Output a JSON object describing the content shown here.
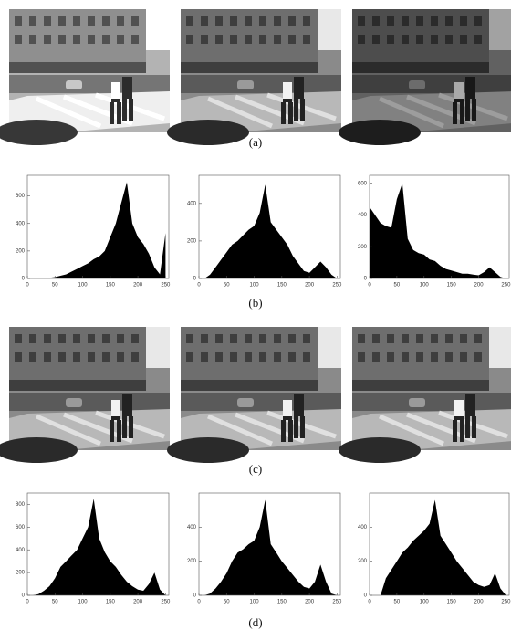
{
  "captions": [
    "(a)",
    "(b)",
    "(c)",
    "(d)"
  ],
  "chart_data": [
    {
      "type": "area",
      "color": "#000000",
      "x": [
        0,
        10,
        20,
        30,
        40,
        50,
        60,
        70,
        80,
        90,
        100,
        110,
        120,
        130,
        140,
        150,
        160,
        170,
        180,
        190,
        200,
        210,
        220,
        230,
        240,
        250
      ],
      "values": [
        0,
        0,
        0,
        0,
        5,
        10,
        20,
        30,
        50,
        70,
        90,
        110,
        140,
        160,
        200,
        300,
        400,
        550,
        700,
        400,
        300,
        250,
        180,
        80,
        30,
        330
      ],
      "xlim": [
        0,
        256
      ],
      "xticks": [
        0,
        50,
        100,
        150,
        200,
        250
      ],
      "ylim": [
        0,
        750
      ],
      "yticks": [
        0,
        200,
        400,
        600
      ]
    },
    {
      "type": "area",
      "color": "#000000",
      "x": [
        0,
        10,
        20,
        30,
        40,
        50,
        60,
        70,
        80,
        90,
        100,
        110,
        120,
        130,
        140,
        150,
        160,
        170,
        180,
        190,
        200,
        210,
        220,
        230,
        240,
        250
      ],
      "values": [
        0,
        0,
        20,
        60,
        100,
        140,
        180,
        200,
        230,
        260,
        280,
        350,
        500,
        300,
        260,
        220,
        180,
        120,
        80,
        40,
        30,
        60,
        90,
        60,
        20,
        0
      ],
      "xlim": [
        0,
        256
      ],
      "xticks": [
        0,
        50,
        100,
        150,
        200,
        250
      ],
      "ylim": [
        0,
        550
      ],
      "yticks": [
        0,
        200,
        400
      ]
    },
    {
      "type": "area",
      "color": "#000000",
      "x": [
        0,
        10,
        20,
        30,
        40,
        50,
        60,
        70,
        80,
        90,
        100,
        110,
        120,
        130,
        140,
        150,
        160,
        170,
        180,
        190,
        200,
        210,
        220,
        230,
        240,
        250
      ],
      "values": [
        450,
        400,
        350,
        330,
        320,
        500,
        600,
        250,
        180,
        160,
        150,
        120,
        110,
        80,
        60,
        50,
        40,
        30,
        30,
        25,
        20,
        40,
        70,
        40,
        10,
        0
      ],
      "xlim": [
        0,
        256
      ],
      "xticks": [
        0,
        50,
        100,
        150,
        200,
        250
      ],
      "ylim": [
        0,
        650
      ],
      "yticks": [
        0,
        200,
        400,
        600
      ]
    },
    {
      "type": "area",
      "color": "#000000",
      "x": [
        0,
        10,
        20,
        30,
        40,
        50,
        60,
        70,
        80,
        90,
        100,
        110,
        120,
        130,
        140,
        150,
        160,
        170,
        180,
        190,
        200,
        210,
        220,
        230,
        240,
        250
      ],
      "values": [
        0,
        0,
        10,
        40,
        80,
        150,
        250,
        300,
        350,
        400,
        500,
        600,
        850,
        500,
        380,
        300,
        250,
        180,
        120,
        80,
        50,
        40,
        100,
        200,
        50,
        0
      ],
      "xlim": [
        0,
        256
      ],
      "xticks": [
        0,
        50,
        100,
        150,
        200,
        250
      ],
      "ylim": [
        0,
        900
      ],
      "yticks": [
        0,
        200,
        400,
        600,
        800
      ]
    },
    {
      "type": "area",
      "color": "#000000",
      "x": [
        0,
        10,
        20,
        30,
        40,
        50,
        60,
        70,
        80,
        90,
        100,
        110,
        120,
        130,
        140,
        150,
        160,
        170,
        180,
        190,
        200,
        210,
        220,
        230,
        240,
        250
      ],
      "values": [
        0,
        0,
        10,
        40,
        80,
        130,
        200,
        250,
        270,
        300,
        320,
        400,
        560,
        300,
        250,
        200,
        160,
        120,
        80,
        50,
        40,
        80,
        180,
        80,
        10,
        0
      ],
      "xlim": [
        0,
        256
      ],
      "xticks": [
        0,
        50,
        100,
        150,
        200,
        250
      ],
      "ylim": [
        0,
        600
      ],
      "yticks": [
        0,
        200,
        400
      ]
    },
    {
      "type": "area",
      "color": "#000000",
      "x": [
        0,
        10,
        20,
        30,
        40,
        50,
        60,
        70,
        80,
        90,
        100,
        110,
        120,
        130,
        140,
        150,
        160,
        170,
        180,
        190,
        200,
        210,
        220,
        230,
        240,
        250
      ],
      "values": [
        0,
        0,
        0,
        100,
        150,
        200,
        250,
        280,
        320,
        350,
        380,
        420,
        560,
        350,
        300,
        250,
        200,
        160,
        120,
        80,
        60,
        50,
        60,
        130,
        40,
        0
      ],
      "xlim": [
        0,
        256
      ],
      "xticks": [
        0,
        50,
        100,
        150,
        200,
        250
      ],
      "ylim": [
        0,
        600
      ],
      "yticks": [
        0,
        200,
        400
      ]
    }
  ]
}
